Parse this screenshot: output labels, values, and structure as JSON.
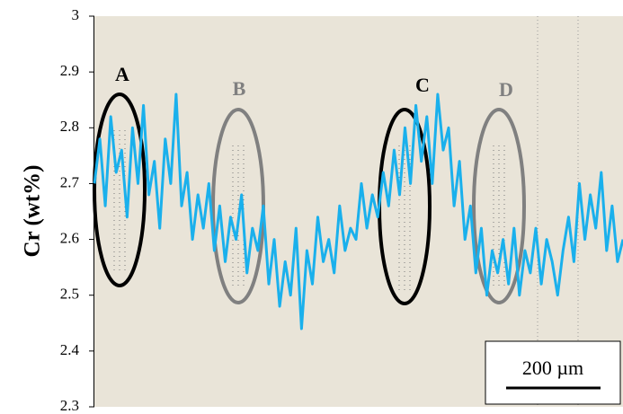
{
  "chart_data": {
    "type": "line",
    "y_label": "Cr (wt%)",
    "ylim": [
      2.3,
      3
    ],
    "yticks": [
      2.3,
      2.4,
      2.5,
      2.6,
      2.7,
      2.8,
      2.9,
      3
    ],
    "annotations": [
      {
        "text": "A",
        "color": "#000000"
      },
      {
        "text": "B",
        "color": "#808080"
      },
      {
        "text": "C",
        "color": "#000000"
      },
      {
        "text": "D",
        "color": "#808080"
      }
    ],
    "scale_bar": "200 µm",
    "categories": [
      null,
      null,
      null,
      null,
      null,
      null,
      null,
      null,
      null,
      null,
      null,
      null,
      null,
      null,
      null,
      null,
      null,
      null,
      null,
      null,
      null,
      null,
      null,
      null,
      null,
      null,
      null,
      null,
      null,
      null,
      null,
      null,
      null,
      null,
      null,
      null,
      null,
      null,
      null,
      null,
      null,
      null,
      null,
      null,
      null,
      null,
      null,
      null,
      null,
      null,
      null,
      null,
      null,
      null,
      null,
      null,
      null,
      null,
      null,
      null,
      null,
      null,
      null,
      null,
      null,
      null,
      null,
      null,
      null,
      null,
      null,
      null,
      null,
      null,
      null,
      null,
      null,
      null,
      null,
      null,
      null,
      null,
      null,
      null,
      null,
      null,
      null,
      null,
      null,
      null,
      null,
      null,
      null,
      null,
      null,
      null,
      null,
      null
    ],
    "series": [
      {
        "color": "#1ab0ec",
        "values": [
          2.7,
          2.78,
          2.66,
          2.82,
          2.72,
          2.76,
          2.64,
          2.8,
          2.7,
          2.84,
          2.68,
          2.74,
          2.62,
          2.78,
          2.7,
          2.86,
          2.66,
          2.72,
          2.6,
          2.68,
          2.62,
          2.7,
          2.58,
          2.66,
          2.56,
          2.64,
          2.6,
          2.68,
          2.54,
          2.62,
          2.58,
          2.66,
          2.52,
          2.6,
          2.48,
          2.56,
          2.5,
          2.62,
          2.44,
          2.58,
          2.52,
          2.64,
          2.56,
          2.6,
          2.54,
          2.66,
          2.58,
          2.62,
          2.6,
          2.7,
          2.62,
          2.68,
          2.64,
          2.72,
          2.66,
          2.76,
          2.68,
          2.8,
          2.7,
          2.84,
          2.74,
          2.82,
          2.7,
          2.86,
          2.76,
          2.8,
          2.66,
          2.74,
          2.6,
          2.66,
          2.54,
          2.62,
          2.5,
          2.58,
          2.54,
          2.6,
          2.52,
          2.62,
          2.5,
          2.58,
          2.54,
          2.62,
          2.52,
          2.6,
          2.56,
          2.5,
          2.58,
          2.64,
          2.56,
          2.7,
          2.6,
          2.68,
          2.62,
          2.72,
          2.58,
          2.66,
          2.56,
          2.6
        ]
      }
    ]
  }
}
